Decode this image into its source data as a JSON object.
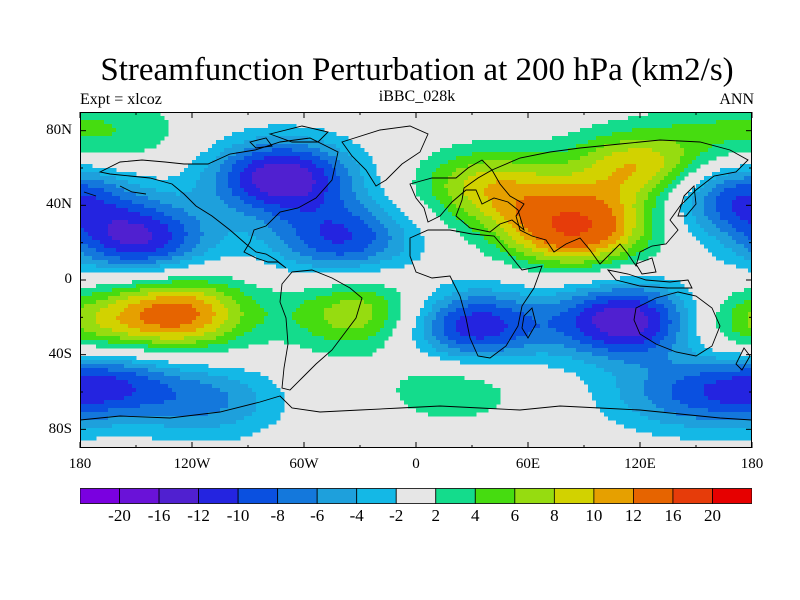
{
  "title": "Streamfunction Perturbation at 200 hPa (km2/s)",
  "left_string": "Expt = xlcoz",
  "center_string": "iBBC_028k",
  "right_string": "ANN",
  "lat_labels": [
    "80N",
    "40N",
    "0",
    "40S",
    "80S"
  ],
  "lon_labels": [
    "180",
    "120W",
    "60W",
    "0",
    "60E",
    "120E",
    "180"
  ],
  "colorbar": {
    "labels": [
      "-20",
      "-16",
      "-12",
      "-10",
      "-8",
      "-6",
      "-4",
      "-2",
      "2",
      "4",
      "6",
      "8",
      "10",
      "12",
      "16",
      "20"
    ],
    "colors": [
      "#7a00e0",
      "#6a12d8",
      "#5020d0",
      "#2424e0",
      "#0a50e0",
      "#1478dc",
      "#1ea0dc",
      "#14b8e6",
      "#e6e6e6",
      "#14dc8c",
      "#46dc10",
      "#96dc10",
      "#d2d200",
      "#e6a000",
      "#e66400",
      "#e63c0a",
      "#e60000"
    ]
  },
  "chart_data": {
    "type": "heatmap",
    "title": "Streamfunction Perturbation at 200 hPa (km2/s)",
    "experiment": "Expt = xlcoz",
    "case": "iBBC_028k",
    "season": "ANN",
    "units": "km2/s",
    "x_range": [
      -180,
      180
    ],
    "y_range": [
      -90,
      90
    ],
    "contour_levels": [
      -20,
      -16,
      -12,
      -10,
      -8,
      -6,
      -4,
      -2,
      2,
      4,
      6,
      8,
      10,
      12,
      16,
      20
    ],
    "features": [
      {
        "lon": 85,
        "lat": 28,
        "value": 16,
        "desc": "positive maximum over South Asia / Eurasia"
      },
      {
        "lon": 40,
        "lat": 50,
        "value": 9
      },
      {
        "lon": 120,
        "lat": 60,
        "value": 10
      },
      {
        "lon": -128,
        "lat": -18,
        "value": 13,
        "desc": "positive center over SE Pacific"
      },
      {
        "lon": -30,
        "lat": -18,
        "value": 8
      },
      {
        "lon": 20,
        "lat": -57,
        "value": 4
      },
      {
        "lon": 180,
        "lat": -25,
        "value": 6
      },
      {
        "lon": -155,
        "lat": 78,
        "value": 3
      },
      {
        "lon": 165,
        "lat": 80,
        "value": 3
      },
      {
        "lon": -72,
        "lat": 55,
        "value": -14,
        "desc": "negative center over Canada"
      },
      {
        "lon": -148,
        "lat": 22,
        "value": -12
      },
      {
        "lon": -40,
        "lat": 22,
        "value": -10
      },
      {
        "lon": 112,
        "lat": -22,
        "value": -14
      },
      {
        "lon": 30,
        "lat": -25,
        "value": -12
      },
      {
        "lon": 170,
        "lat": 45,
        "value": -10
      },
      {
        "lon": -162,
        "lat": -55,
        "value": -8
      },
      {
        "lon": -110,
        "lat": -65,
        "value": -6
      },
      {
        "lon": 165,
        "lat": -60,
        "value": -6
      },
      {
        "lon": 130,
        "lat": -62,
        "value": -4
      }
    ]
  }
}
